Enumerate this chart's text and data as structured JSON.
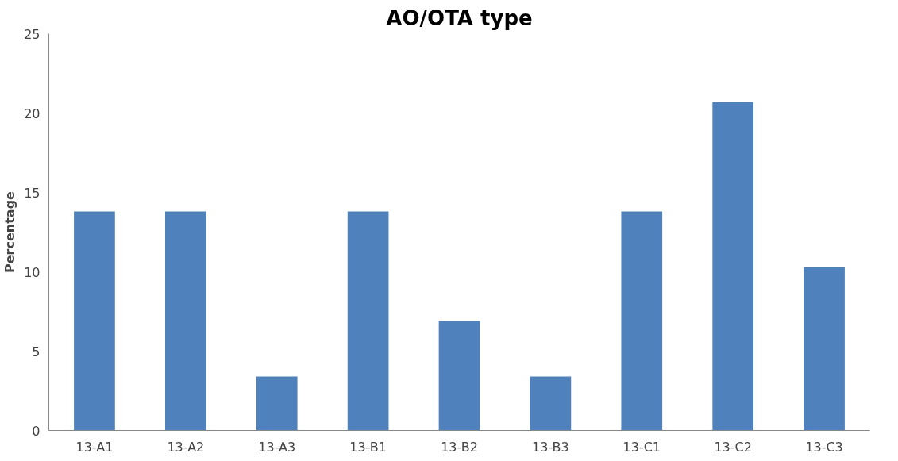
{
  "chart_data": {
    "type": "bar",
    "title": "AO/OTA type",
    "ylabel": "Percentage",
    "categories": [
      "13-A1",
      "13-A2",
      "13-A3",
      "13-B1",
      "13-B2",
      "13-B3",
      "13-C1",
      "13-C2",
      "13-C3"
    ],
    "values": [
      13.8,
      13.8,
      3.4,
      13.8,
      6.9,
      3.4,
      13.8,
      20.7,
      10.3
    ],
    "color": "#4f81bd",
    "ylim": [
      0,
      25
    ],
    "yticks": [
      0,
      5,
      10,
      15,
      20,
      25
    ],
    "grid": false
  }
}
